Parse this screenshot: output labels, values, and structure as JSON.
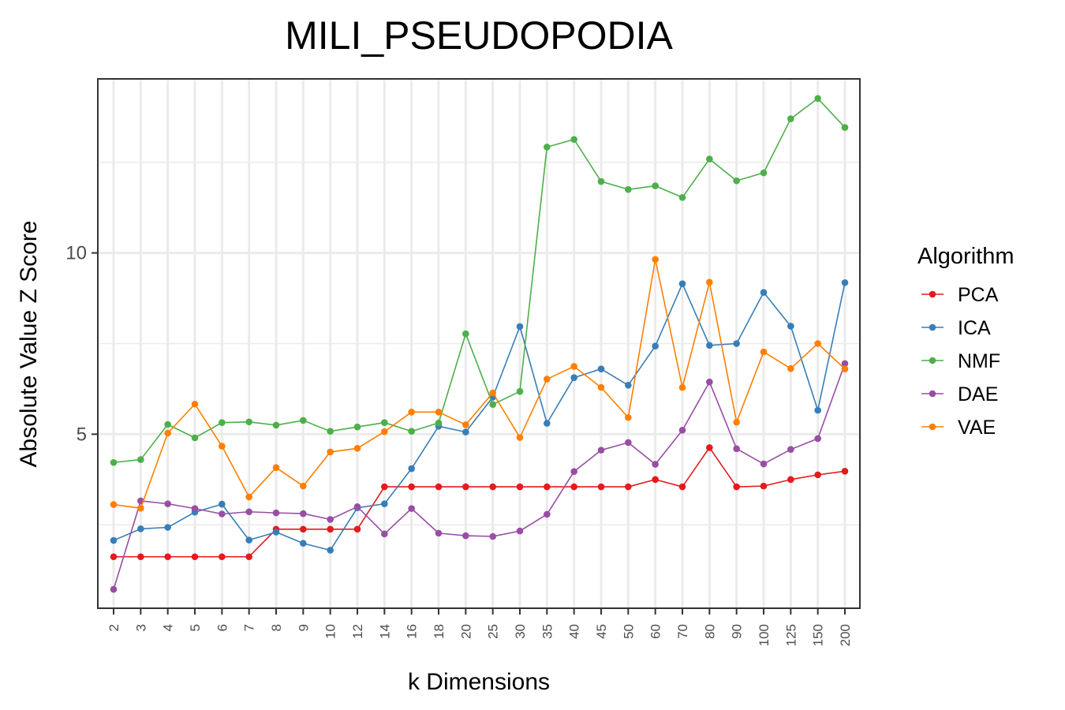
{
  "chart_data": {
    "type": "line",
    "title": "MILI_PSEUDOPODIA",
    "xlabel": "k Dimensions",
    "ylabel": "Absolute Value Z Score",
    "categories": [
      "2",
      "3",
      "4",
      "5",
      "6",
      "7",
      "8",
      "9",
      "10",
      "12",
      "14",
      "16",
      "18",
      "20",
      "25",
      "30",
      "35",
      "40",
      "45",
      "50",
      "60",
      "70",
      "80",
      "90",
      "100",
      "125",
      "150",
      "200"
    ],
    "y_ticks": [
      5,
      10
    ],
    "y_tick_labels": [
      "5",
      "10"
    ],
    "ylim": [
      0.2,
      14.8
    ],
    "grid": true,
    "legend": {
      "title": "Algorithm",
      "position": "right"
    },
    "series": [
      {
        "name": "PCA",
        "color": "#e41a1c",
        "values": [
          1.62,
          1.62,
          1.62,
          1.62,
          1.62,
          1.62,
          2.38,
          2.38,
          2.38,
          2.38,
          3.55,
          3.55,
          3.55,
          3.55,
          3.55,
          3.55,
          3.55,
          3.55,
          3.55,
          3.55,
          3.75,
          3.55,
          4.63,
          3.55,
          3.57,
          3.75,
          3.88,
          3.98
        ]
      },
      {
        "name": "ICA",
        "color": "#377eb8",
        "values": [
          2.07,
          2.39,
          2.43,
          2.85,
          3.07,
          2.08,
          2.3,
          1.99,
          1.8,
          2.97,
          3.08,
          4.05,
          5.22,
          5.06,
          6.02,
          7.97,
          5.3,
          6.56,
          6.8,
          6.35,
          7.43,
          9.15,
          7.45,
          7.5,
          8.91,
          7.98,
          5.66,
          9.18
        ]
      },
      {
        "name": "NMF",
        "color": "#4daf4a",
        "values": [
          4.22,
          4.3,
          5.27,
          4.9,
          5.32,
          5.34,
          5.25,
          5.38,
          5.08,
          5.2,
          5.32,
          5.08,
          5.31,
          7.77,
          5.82,
          6.18,
          12.92,
          13.13,
          11.97,
          11.75,
          11.85,
          11.53,
          12.59,
          11.99,
          12.21,
          13.7,
          14.26,
          13.46
        ]
      },
      {
        "name": "DAE",
        "color": "#984ea3",
        "values": [
          0.72,
          3.16,
          3.08,
          2.95,
          2.8,
          2.86,
          2.83,
          2.81,
          2.65,
          3.0,
          2.25,
          2.95,
          2.27,
          2.2,
          2.18,
          2.33,
          2.79,
          3.97,
          4.56,
          4.77,
          4.17,
          5.11,
          6.44,
          4.6,
          4.18,
          4.58,
          4.88,
          6.95
        ]
      },
      {
        "name": "VAE",
        "color": "#ff7f00",
        "values": [
          3.06,
          2.96,
          5.03,
          5.83,
          4.67,
          3.27,
          4.08,
          3.57,
          4.51,
          4.61,
          5.07,
          5.61,
          5.61,
          5.26,
          6.14,
          4.91,
          6.52,
          6.87,
          6.29,
          5.46,
          9.82,
          6.29,
          9.19,
          5.33,
          7.27,
          6.81,
          7.5,
          6.8
        ]
      }
    ]
  }
}
